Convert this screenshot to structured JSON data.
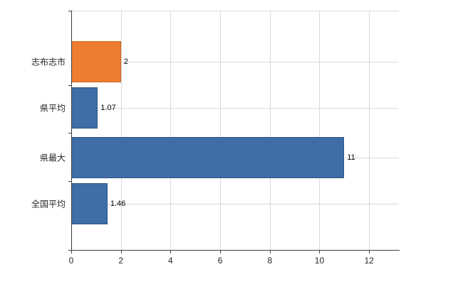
{
  "chart_data": {
    "type": "bar",
    "orientation": "horizontal",
    "title": "",
    "xlabel": "",
    "ylabel": "",
    "categories": [
      "志布志市",
      "県平均",
      "県最大",
      "全国平均"
    ],
    "values": [
      2,
      1.07,
      11,
      1.46
    ],
    "value_labels": [
      "2",
      "1.07",
      "11",
      "1.46"
    ],
    "series": [
      {
        "name": "",
        "values": [
          2,
          1.07,
          11,
          1.46
        ]
      }
    ],
    "bar_colors": [
      "#ED7D31",
      "#3E6DA8",
      "#3E6DA8",
      "#3E6DA8"
    ],
    "bar_border_colors": [
      "#C9661F",
      "#2E5580",
      "#2E5580",
      "#2E5580"
    ],
    "x_ticks": [
      0,
      2,
      4,
      6,
      8,
      10,
      12
    ],
    "x_tick_labels": [
      "0",
      "2",
      "4",
      "6",
      "8",
      "10",
      "12"
    ],
    "xlim": [
      0,
      13.2
    ],
    "grid": true,
    "legend": "none",
    "background_color": "#FFFFFF",
    "gridline_color": "#D9D9D9",
    "axis_color": "#404040",
    "label_color": "#262626"
  }
}
